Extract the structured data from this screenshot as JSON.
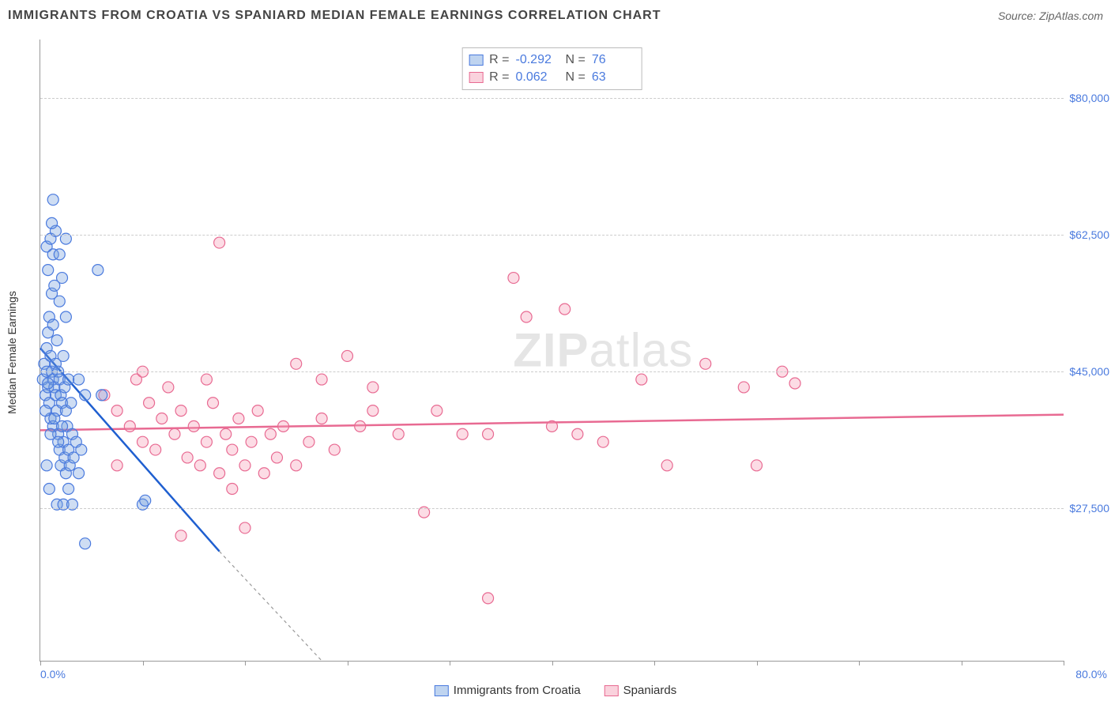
{
  "title": "IMMIGRANTS FROM CROATIA VS SPANIARD MEDIAN FEMALE EARNINGS CORRELATION CHART",
  "source": "Source: ZipAtlas.com",
  "watermark_bold": "ZIP",
  "watermark_rest": "atlas",
  "chart": {
    "type": "scatter",
    "xlim": [
      0,
      80
    ],
    "ylim": [
      8000,
      87500
    ],
    "x_tick_positions": [
      0,
      8,
      16,
      24,
      32,
      40,
      48,
      56,
      64,
      72,
      80
    ],
    "x_tick_labels_left": "0.0%",
    "x_tick_labels_right": "80.0%",
    "y_gridlines": [
      27500,
      45000,
      62500,
      80000
    ],
    "y_tick_labels": [
      "$27,500",
      "$45,000",
      "$62,500",
      "$80,000"
    ],
    "ylabel": "Median Female Earnings",
    "background_color": "#ffffff",
    "grid_color": "#cccccc",
    "axis_color": "#999999",
    "marker_radius": 7,
    "title_fontsize": 16,
    "label_fontsize": 14,
    "tick_color": "#4a7ade",
    "series": [
      {
        "name": "Immigrants from Croatia",
        "color_fill": "rgba(114,159,222,0.35)",
        "color_stroke": "#4a7ade",
        "R": "-0.292",
        "N": "76",
        "trend": {
          "x1": 0,
          "y1": 48000,
          "x2": 14,
          "y2": 22000,
          "dash_x2": 22,
          "dash_y2": 8000
        },
        "points": [
          [
            0.2,
            44000
          ],
          [
            0.3,
            46000
          ],
          [
            0.4,
            42000
          ],
          [
            0.5,
            45000
          ],
          [
            0.5,
            48000
          ],
          [
            0.6,
            43000
          ],
          [
            0.6,
            50000
          ],
          [
            0.7,
            41000
          ],
          [
            0.7,
            52000
          ],
          [
            0.8,
            39000
          ],
          [
            0.8,
            47000
          ],
          [
            0.9,
            45000
          ],
          [
            0.9,
            55000
          ],
          [
            1.0,
            38000
          ],
          [
            1.0,
            44000
          ],
          [
            1.0,
            51000
          ],
          [
            1.1,
            43000
          ],
          [
            1.1,
            56000
          ],
          [
            1.2,
            42000
          ],
          [
            1.2,
            46000
          ],
          [
            1.3,
            40000
          ],
          [
            1.3,
            49000
          ],
          [
            1.4,
            37000
          ],
          [
            1.4,
            45000
          ],
          [
            1.5,
            35000
          ],
          [
            1.5,
            44000
          ],
          [
            1.5,
            54000
          ],
          [
            1.6,
            33000
          ],
          [
            1.6,
            42000
          ],
          [
            1.7,
            41000
          ],
          [
            1.7,
            57000
          ],
          [
            1.8,
            36000
          ],
          [
            1.8,
            47000
          ],
          [
            1.9,
            34000
          ],
          [
            1.9,
            43000
          ],
          [
            2.0,
            32000
          ],
          [
            2.0,
            40000
          ],
          [
            2.0,
            52000
          ],
          [
            2.1,
            38000
          ],
          [
            2.2,
            35000
          ],
          [
            2.2,
            44000
          ],
          [
            2.3,
            33000
          ],
          [
            2.4,
            41000
          ],
          [
            2.5,
            37000
          ],
          [
            2.6,
            34000
          ],
          [
            2.8,
            36000
          ],
          [
            3.0,
            32000
          ],
          [
            3.2,
            35000
          ],
          [
            0.5,
            61000
          ],
          [
            0.8,
            62000
          ],
          [
            1.0,
            60000
          ],
          [
            1.2,
            63000
          ],
          [
            0.6,
            58000
          ],
          [
            1.5,
            60000
          ],
          [
            2.0,
            62000
          ],
          [
            0.9,
            64000
          ],
          [
            4.5,
            58000
          ],
          [
            4.8,
            42000
          ],
          [
            1.0,
            67000
          ],
          [
            0.7,
            30000
          ],
          [
            1.3,
            28000
          ],
          [
            1.8,
            28000
          ],
          [
            2.5,
            28000
          ],
          [
            0.5,
            33000
          ],
          [
            0.8,
            37000
          ],
          [
            1.1,
            39000
          ],
          [
            1.4,
            36000
          ],
          [
            1.7,
            38000
          ],
          [
            2.2,
            30000
          ],
          [
            3.5,
            23000
          ],
          [
            3.0,
            44000
          ],
          [
            3.5,
            42000
          ],
          [
            8.0,
            28000
          ],
          [
            8.2,
            28500
          ],
          [
            0.4,
            40000
          ],
          [
            0.6,
            43500
          ]
        ]
      },
      {
        "name": "Spaniards",
        "color_fill": "rgba(245,155,180,0.35)",
        "color_stroke": "#e86a92",
        "R": "0.062",
        "N": "63",
        "trend": {
          "x1": 0,
          "y1": 37500,
          "x2": 80,
          "y2": 39500
        },
        "points": [
          [
            5,
            42000
          ],
          [
            6,
            40000
          ],
          [
            7,
            38000
          ],
          [
            7.5,
            44000
          ],
          [
            8,
            36000
          ],
          [
            8.5,
            41000
          ],
          [
            9,
            35000
          ],
          [
            9.5,
            39000
          ],
          [
            10,
            43000
          ],
          [
            10.5,
            37000
          ],
          [
            11,
            40000
          ],
          [
            11.5,
            34000
          ],
          [
            12,
            38000
          ],
          [
            12.5,
            33000
          ],
          [
            13,
            36000
          ],
          [
            13.5,
            41000
          ],
          [
            14,
            32000
          ],
          [
            14.5,
            37000
          ],
          [
            15,
            35000
          ],
          [
            15.5,
            39000
          ],
          [
            16,
            33000
          ],
          [
            16.5,
            36000
          ],
          [
            17,
            40000
          ],
          [
            17.5,
            32000
          ],
          [
            18,
            37000
          ],
          [
            18.5,
            34000
          ],
          [
            19,
            38000
          ],
          [
            20,
            33000
          ],
          [
            21,
            36000
          ],
          [
            22,
            39000
          ],
          [
            23,
            35000
          ],
          [
            24,
            47000
          ],
          [
            25,
            38000
          ],
          [
            26,
            43000
          ],
          [
            28,
            37000
          ],
          [
            30,
            27000
          ],
          [
            31,
            40000
          ],
          [
            33,
            37000
          ],
          [
            35,
            16000
          ],
          [
            37,
            57000
          ],
          [
            38,
            52000
          ],
          [
            40,
            38000
          ],
          [
            41,
            53000
          ],
          [
            42,
            37000
          ],
          [
            44,
            36000
          ],
          [
            47,
            44000
          ],
          [
            49,
            33000
          ],
          [
            52,
            46000
          ],
          [
            55,
            43000
          ],
          [
            56,
            33000
          ],
          [
            58,
            45000
          ],
          [
            59,
            43500
          ],
          [
            14,
            61500
          ],
          [
            11,
            24000
          ],
          [
            15,
            30000
          ],
          [
            13,
            44000
          ],
          [
            16,
            25000
          ],
          [
            20,
            46000
          ],
          [
            22,
            44000
          ],
          [
            26,
            40000
          ],
          [
            35,
            37000
          ],
          [
            8,
            45000
          ],
          [
            6,
            33000
          ]
        ]
      }
    ],
    "legend_items": [
      {
        "label": "Immigrants from Croatia",
        "swatch": "blue"
      },
      {
        "label": "Spaniards",
        "swatch": "pink"
      }
    ]
  }
}
